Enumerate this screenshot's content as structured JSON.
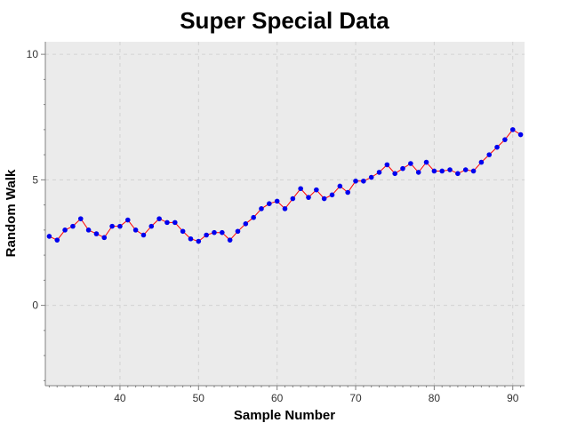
{
  "chart_data": {
    "type": "line",
    "title": "Super Special Data",
    "xlabel": "Sample Number",
    "ylabel": "Random Walk",
    "xlim": [
      30.5,
      91.5
    ],
    "ylim": [
      -3.2,
      10.5
    ],
    "x_major_ticks": [
      40,
      50,
      60,
      70,
      80,
      90
    ],
    "x_minor_step": 1,
    "y_major_ticks": [
      0,
      5,
      10
    ],
    "y_minor_step": 1,
    "grid": true,
    "colors": {
      "background": "#ebebeb",
      "line": "#ff0000",
      "marker": "#0000ee",
      "grid": "#d2d2d2"
    },
    "series": [
      {
        "x": [
          31,
          32,
          33,
          34,
          35,
          36,
          37,
          38,
          39,
          40,
          41,
          42,
          43,
          44,
          45,
          46,
          47,
          48,
          49,
          50,
          51,
          52,
          53,
          54,
          55,
          56,
          57,
          58,
          59,
          60,
          61,
          62,
          63,
          64,
          65,
          66,
          67,
          68,
          69,
          70,
          71,
          72,
          73,
          74,
          75,
          76,
          77,
          78,
          79,
          80,
          81,
          82,
          83,
          84,
          85,
          86,
          87,
          88,
          89,
          90,
          91
        ],
        "y": [
          2.75,
          2.6,
          3.0,
          3.15,
          3.45,
          3.0,
          2.85,
          2.7,
          3.15,
          3.15,
          3.4,
          3.0,
          2.8,
          3.15,
          3.45,
          3.3,
          3.3,
          2.95,
          2.65,
          2.55,
          2.8,
          2.9,
          2.9,
          2.6,
          2.95,
          3.25,
          3.5,
          3.85,
          4.05,
          4.15,
          3.85,
          4.25,
          4.65,
          4.3,
          4.6,
          4.25,
          4.4,
          4.75,
          4.5,
          4.95,
          4.95,
          5.1,
          5.3,
          5.6,
          5.25,
          5.45,
          5.65,
          5.3,
          5.7,
          5.35,
          5.35,
          5.4,
          5.25,
          5.4,
          5.35,
          5.7,
          6.0,
          6.3,
          6.6,
          7.0,
          6.8
        ]
      }
    ]
  }
}
